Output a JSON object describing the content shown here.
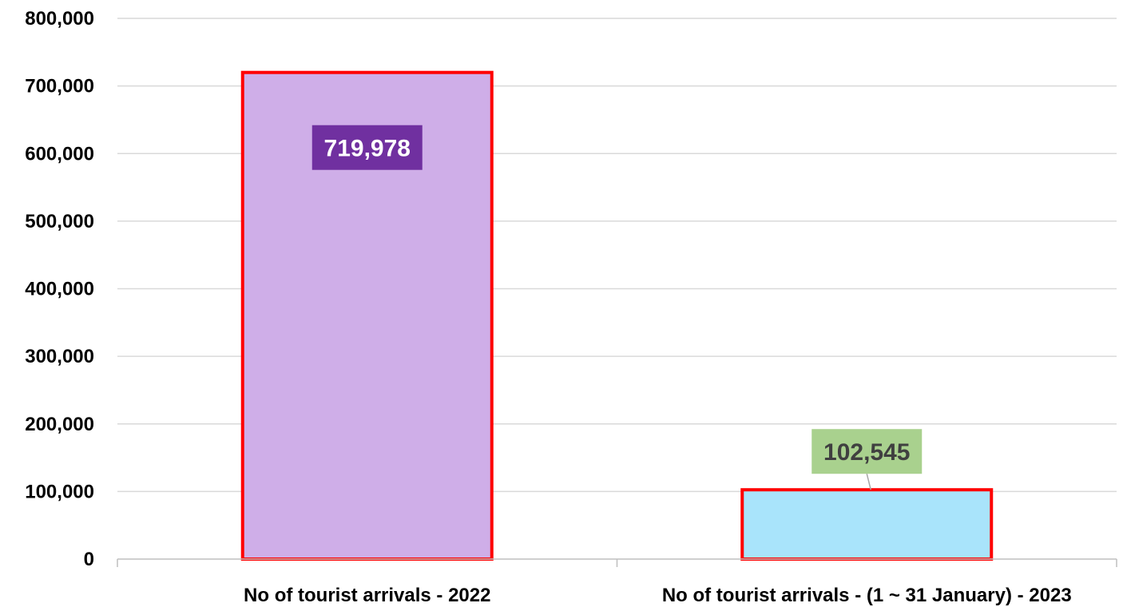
{
  "chart_data": {
    "type": "bar",
    "categories": [
      "No of tourist arrivals - 2022",
      "No of tourist arrivals - (1 ~ 31 January) - 2023"
    ],
    "values": [
      719978,
      102545
    ],
    "data_labels": [
      "719,978",
      "102,545"
    ],
    "ylim": [
      0,
      800000
    ],
    "y_ticks": [
      0,
      100000,
      200000,
      300000,
      400000,
      500000,
      600000,
      700000,
      800000
    ],
    "y_tick_labels": [
      "0",
      "100,000",
      "200,000",
      "300,000",
      "400,000",
      "500,000",
      "600,000",
      "700,000",
      "800,000"
    ],
    "grid": true,
    "legend": "none",
    "colors": {
      "bar_fills": [
        "#cfaee8",
        "#a9e4fb"
      ],
      "bar_outline": "#ff0000",
      "label_box_fills": [
        "#7030a0",
        "#a9d18e"
      ],
      "label_text_colors": [
        "#ffffff",
        "#404040"
      ]
    }
  }
}
